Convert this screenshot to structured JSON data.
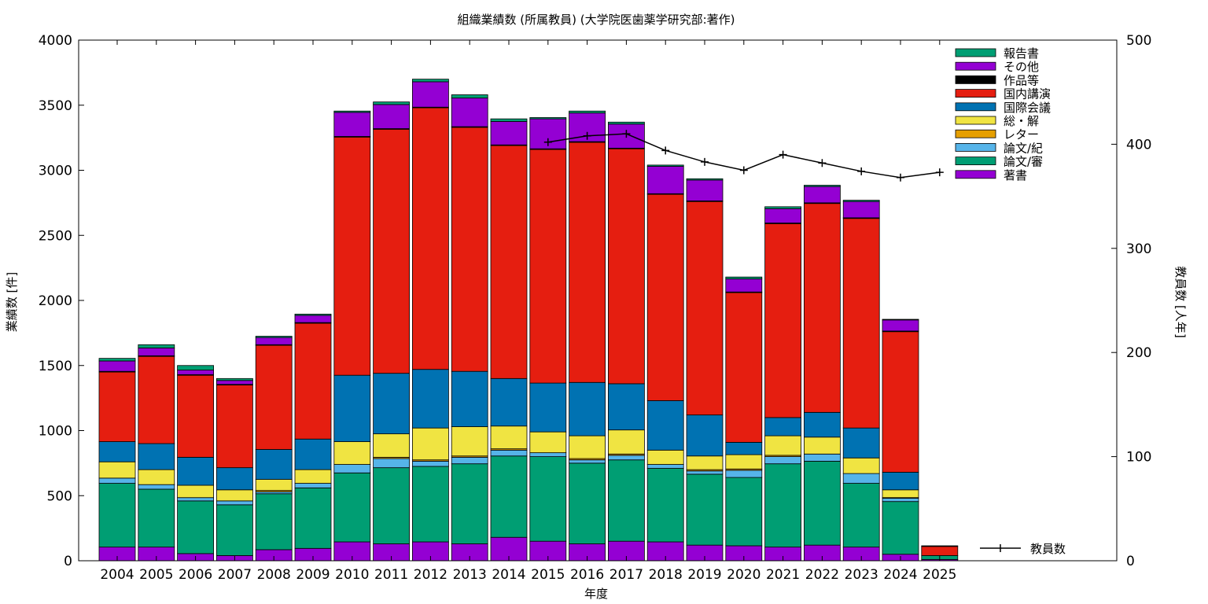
{
  "chart_data": {
    "type": "bar",
    "stacked": true,
    "title": "組織業績数 (所属教員) (大学院医歯薬学研究部:著作)",
    "xlabel": "年度",
    "ylabel": "業績数 [件]",
    "y2label": "教員数 [人年]",
    "ylim": [
      0,
      4000
    ],
    "yticks": [
      0,
      500,
      1000,
      1500,
      2000,
      2500,
      3000,
      3500,
      4000
    ],
    "y2lim": [
      0,
      500
    ],
    "y2ticks": [
      0,
      100,
      200,
      300,
      400,
      500
    ],
    "grid": false,
    "legend_position": "top-right",
    "categories": [
      "2004",
      "2005",
      "2006",
      "2007",
      "2008",
      "2009",
      "2010",
      "2011",
      "2012",
      "2013",
      "2014",
      "2015",
      "2016",
      "2017",
      "2018",
      "2019",
      "2020",
      "2021",
      "2022",
      "2023",
      "2024",
      "2025"
    ],
    "series": [
      {
        "name": "著書",
        "color": "#9400d3",
        "values": [
          105,
          105,
          55,
          40,
          85,
          95,
          145,
          130,
          145,
          130,
          180,
          150,
          130,
          150,
          145,
          120,
          115,
          105,
          120,
          105,
          50,
          10
        ]
      },
      {
        "name": "論文/審",
        "color": "#009e73",
        "values": [
          490,
          445,
          405,
          390,
          430,
          465,
          530,
          585,
          580,
          615,
          625,
          650,
          620,
          625,
          565,
          545,
          525,
          640,
          645,
          490,
          405,
          30
        ]
      },
      {
        "name": "論文/紀",
        "color": "#56b4e9",
        "values": [
          40,
          35,
          25,
          30,
          15,
          35,
          65,
          70,
          40,
          50,
          45,
          30,
          25,
          35,
          30,
          25,
          55,
          55,
          55,
          75,
          25,
          0
        ]
      },
      {
        "name": "レター",
        "color": "#e69f00",
        "values": [
          0,
          0,
          0,
          0,
          10,
          0,
          0,
          10,
          10,
          10,
          10,
          0,
          10,
          10,
          0,
          10,
          10,
          10,
          0,
          0,
          5,
          0
        ]
      },
      {
        "name": "総・解",
        "color": "#f0e442",
        "values": [
          125,
          115,
          95,
          85,
          85,
          105,
          175,
          180,
          245,
          225,
          175,
          160,
          175,
          185,
          110,
          105,
          110,
          150,
          130,
          120,
          60,
          0
        ]
      },
      {
        "name": "国際会議",
        "color": "#0072b2",
        "values": [
          155,
          200,
          215,
          170,
          230,
          235,
          510,
          465,
          450,
          425,
          365,
          375,
          410,
          355,
          380,
          315,
          95,
          140,
          190,
          230,
          135,
          0
        ]
      },
      {
        "name": "国内講演",
        "color": "#e51e10",
        "values": [
          535,
          670,
          630,
          635,
          800,
          890,
          1830,
          1875,
          2010,
          1875,
          1790,
          1795,
          1845,
          1805,
          1585,
          1640,
          1150,
          1490,
          1605,
          1610,
          1080,
          70
        ]
      },
      {
        "name": "作品等",
        "color": "#000000",
        "values": [
          5,
          5,
          5,
          5,
          5,
          5,
          5,
          5,
          5,
          5,
          5,
          5,
          5,
          5,
          5,
          5,
          5,
          5,
          5,
          5,
          5,
          0
        ]
      },
      {
        "name": "その他",
        "color": "#9400d3",
        "values": [
          80,
          60,
          35,
          30,
          55,
          55,
          185,
          185,
          195,
          220,
          180,
          230,
          220,
          185,
          210,
          160,
          100,
          110,
          125,
          125,
          85,
          0
        ]
      },
      {
        "name": "報告書",
        "color": "#009e73",
        "values": [
          20,
          25,
          35,
          15,
          10,
          10,
          10,
          20,
          20,
          25,
          20,
          10,
          15,
          15,
          10,
          10,
          15,
          15,
          10,
          10,
          5,
          5
        ]
      }
    ],
    "line_series": {
      "name": "教員数",
      "color": "#000000",
      "axis": "y2",
      "x": [
        "2015",
        "2016",
        "2017",
        "2018",
        "2019",
        "2020",
        "2021",
        "2022",
        "2023",
        "2024",
        "2025"
      ],
      "values": [
        402,
        408,
        410,
        394,
        383,
        375,
        390,
        382,
        374,
        368,
        373
      ]
    }
  }
}
